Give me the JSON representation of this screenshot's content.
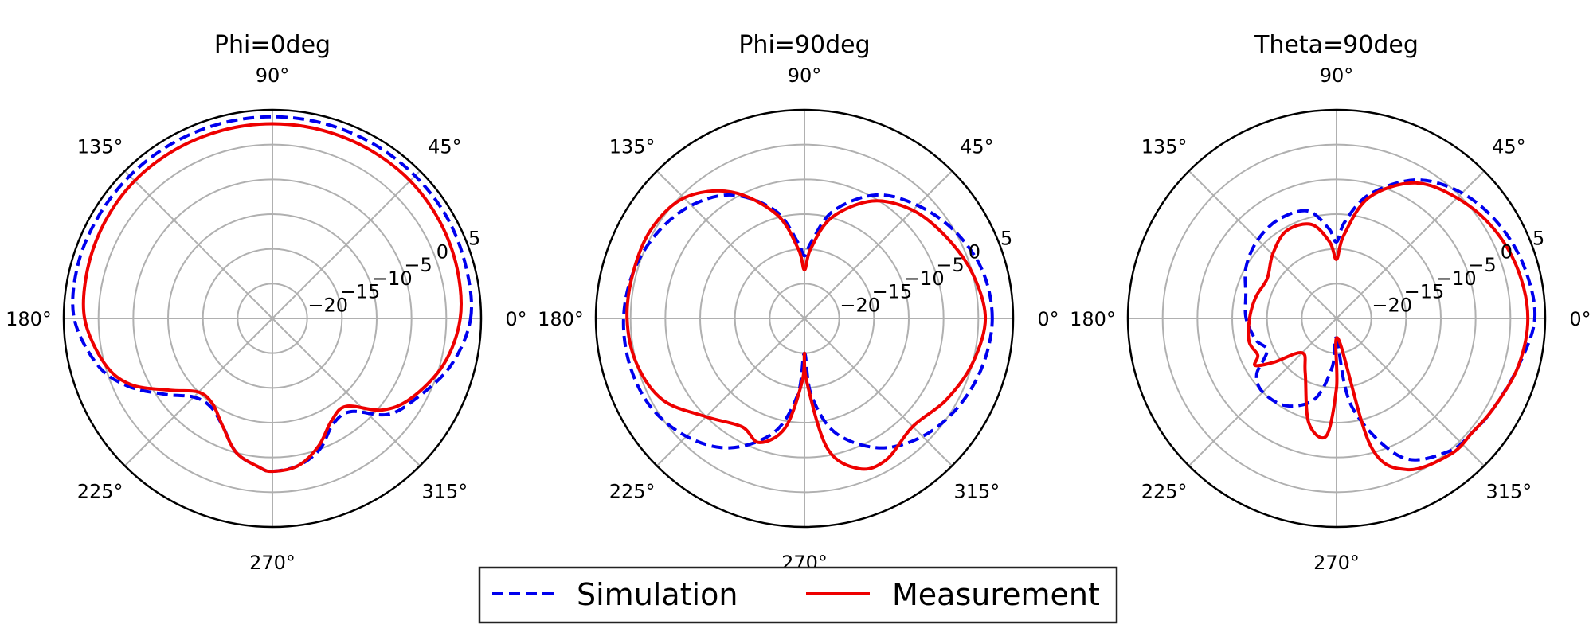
{
  "chart_data": [
    {
      "type": "polar-line",
      "title": "Phi=0deg",
      "rlim": [
        -25,
        5
      ],
      "r_ticks": [
        "−20",
        "−15",
        "−10",
        "−5",
        "0",
        "5"
      ],
      "r_values": [
        -20,
        -15,
        -10,
        -5,
        0,
        5
      ],
      "theta_ticks": [
        "0°",
        "45°",
        "90°",
        "135°",
        "180°",
        "225°",
        "270°",
        "315°"
      ],
      "grid": true,
      "series": [
        {
          "name": "Simulation",
          "theta_deg": [
            0,
            15,
            30,
            45,
            60,
            75,
            90,
            105,
            120,
            135,
            150,
            165,
            180,
            195,
            205,
            215,
            225,
            235,
            245,
            255,
            265,
            270,
            280,
            290,
            300,
            310,
            320,
            330,
            345,
            360
          ],
          "r_db": [
            3.5,
            3.8,
            4.0,
            4.0,
            4.0,
            4.0,
            4.0,
            4.0,
            4.0,
            4.0,
            4.0,
            4.0,
            3.5,
            1.0,
            -2.0,
            -6.0,
            -9.0,
            -9.5,
            -8.0,
            -5.0,
            -3.5,
            -3.0,
            -3.5,
            -5.0,
            -7.5,
            -7.5,
            -3.5,
            -1.5,
            1.5,
            3.5
          ]
        },
        {
          "name": "Measurement",
          "theta_deg": [
            0,
            15,
            30,
            45,
            60,
            75,
            90,
            105,
            120,
            135,
            150,
            165,
            180,
            195,
            205,
            215,
            225,
            235,
            245,
            255,
            265,
            270,
            280,
            290,
            300,
            310,
            320,
            330,
            345,
            360
          ],
          "r_db": [
            2.0,
            2.5,
            2.8,
            3.0,
            3.0,
            3.0,
            3.0,
            3.0,
            3.0,
            3.0,
            2.8,
            2.5,
            2.0,
            0.0,
            -2.5,
            -7.0,
            -10.0,
            -10.0,
            -8.0,
            -5.0,
            -3.5,
            -3.0,
            -3.5,
            -5.5,
            -8.0,
            -8.5,
            -4.5,
            -2.0,
            0.5,
            2.0
          ]
        }
      ]
    },
    {
      "type": "polar-line",
      "title": "Phi=90deg",
      "rlim": [
        -25,
        5
      ],
      "r_ticks": [
        "−20",
        "−15",
        "−10",
        "−5",
        "0",
        "5"
      ],
      "r_values": [
        -20,
        -15,
        -10,
        -5,
        0,
        5
      ],
      "theta_ticks": [
        "0°",
        "45°",
        "90°",
        "135°",
        "180°",
        "225°",
        "270°",
        "315°"
      ],
      "grid": true,
      "series": [
        {
          "name": "Simulation",
          "theta_deg": [
            0,
            15,
            30,
            45,
            60,
            75,
            85,
            90,
            95,
            105,
            120,
            135,
            150,
            165,
            180,
            195,
            210,
            225,
            240,
            255,
            265,
            270,
            275,
            285,
            300,
            315,
            330,
            345,
            360
          ],
          "r_db": [
            2.0,
            1.5,
            0.0,
            -2.0,
            -4.5,
            -9.0,
            -14.0,
            -16.0,
            -14.0,
            -9.0,
            -4.5,
            -2.0,
            -0.5,
            0.5,
            1.0,
            1.0,
            0.5,
            -1.0,
            -3.5,
            -8.0,
            -14.0,
            -20.0,
            -14.0,
            -8.0,
            -3.5,
            -1.0,
            0.5,
            1.5,
            2.0
          ]
        },
        {
          "name": "Measurement",
          "theta_deg": [
            0,
            15,
            30,
            45,
            60,
            75,
            85,
            90,
            95,
            105,
            120,
            135,
            150,
            165,
            180,
            195,
            210,
            225,
            240,
            250,
            260,
            268,
            270,
            272,
            280,
            290,
            300,
            315,
            330,
            345,
            360
          ],
          "r_db": [
            1.0,
            0.0,
            -1.5,
            -3.0,
            -5.5,
            -10.0,
            -15.0,
            -18.0,
            -15.0,
            -9.5,
            -4.0,
            -0.5,
            0.5,
            0.5,
            0.5,
            0.0,
            -1.5,
            -5.0,
            -7.0,
            -6.0,
            -9.0,
            -16.0,
            -20.0,
            -16.0,
            -6.0,
            -2.0,
            -1.5,
            -3.0,
            -1.5,
            0.0,
            1.0
          ]
        }
      ]
    },
    {
      "type": "polar-line",
      "title": "Theta=90deg",
      "rlim": [
        -25,
        5
      ],
      "r_ticks": [
        "−20",
        "−15",
        "−10",
        "−5",
        "0",
        "5"
      ],
      "r_values": [
        -20,
        -15,
        -10,
        -5,
        0,
        5
      ],
      "theta_ticks": [
        "0°",
        "45°",
        "90°",
        "135°",
        "180°",
        "225°",
        "270°",
        "315°"
      ],
      "grid": true,
      "series": [
        {
          "name": "Simulation",
          "theta_deg": [
            0,
            15,
            30,
            45,
            60,
            75,
            85,
            90,
            95,
            105,
            120,
            135,
            150,
            165,
            180,
            195,
            205,
            215,
            225,
            240,
            255,
            265,
            270,
            280,
            295,
            310,
            320,
            330,
            345,
            360
          ],
          "r_db": [
            3.5,
            3.0,
            2.0,
            0.5,
            -2.0,
            -6.5,
            -11.0,
            -14.0,
            -12.0,
            -9.0,
            -8.5,
            -9.0,
            -10.0,
            -11.5,
            -12.0,
            -13.0,
            -14.0,
            -11.0,
            -10.0,
            -10.5,
            -13.0,
            -18.0,
            -22.0,
            -12.0,
            -3.0,
            0.0,
            0.5,
            1.0,
            2.0,
            3.5
          ]
        },
        {
          "name": "Measurement",
          "theta_deg": [
            0,
            15,
            30,
            45,
            60,
            75,
            85,
            90,
            95,
            105,
            120,
            135,
            150,
            165,
            180,
            195,
            205,
            210,
            215,
            225,
            240,
            255,
            265,
            270,
            275,
            285,
            295,
            310,
            320,
            330,
            345,
            360
          ],
          "r_db": [
            2.5,
            2.0,
            1.0,
            -0.5,
            -2.5,
            -7.0,
            -13.0,
            -16.5,
            -14.0,
            -11.0,
            -10.5,
            -12.0,
            -13.5,
            -13.0,
            -12.5,
            -12.0,
            -12.5,
            -11.5,
            -14.0,
            -18.0,
            -16.0,
            -9.5,
            -8.0,
            -15.0,
            -22.0,
            -6.0,
            -1.0,
            0.5,
            0.5,
            1.0,
            2.0,
            2.5
          ]
        }
      ]
    }
  ],
  "legend": {
    "entries": [
      {
        "label": "Simulation",
        "color": "#0000ee",
        "style": "dashed"
      },
      {
        "label": "Measurement",
        "color": "#ee0000",
        "style": "solid"
      }
    ],
    "placement": "bottom-center"
  },
  "colors": {
    "simulation": "#0000ee",
    "measurement": "#ee0000",
    "grid": "#b0b0b0"
  }
}
